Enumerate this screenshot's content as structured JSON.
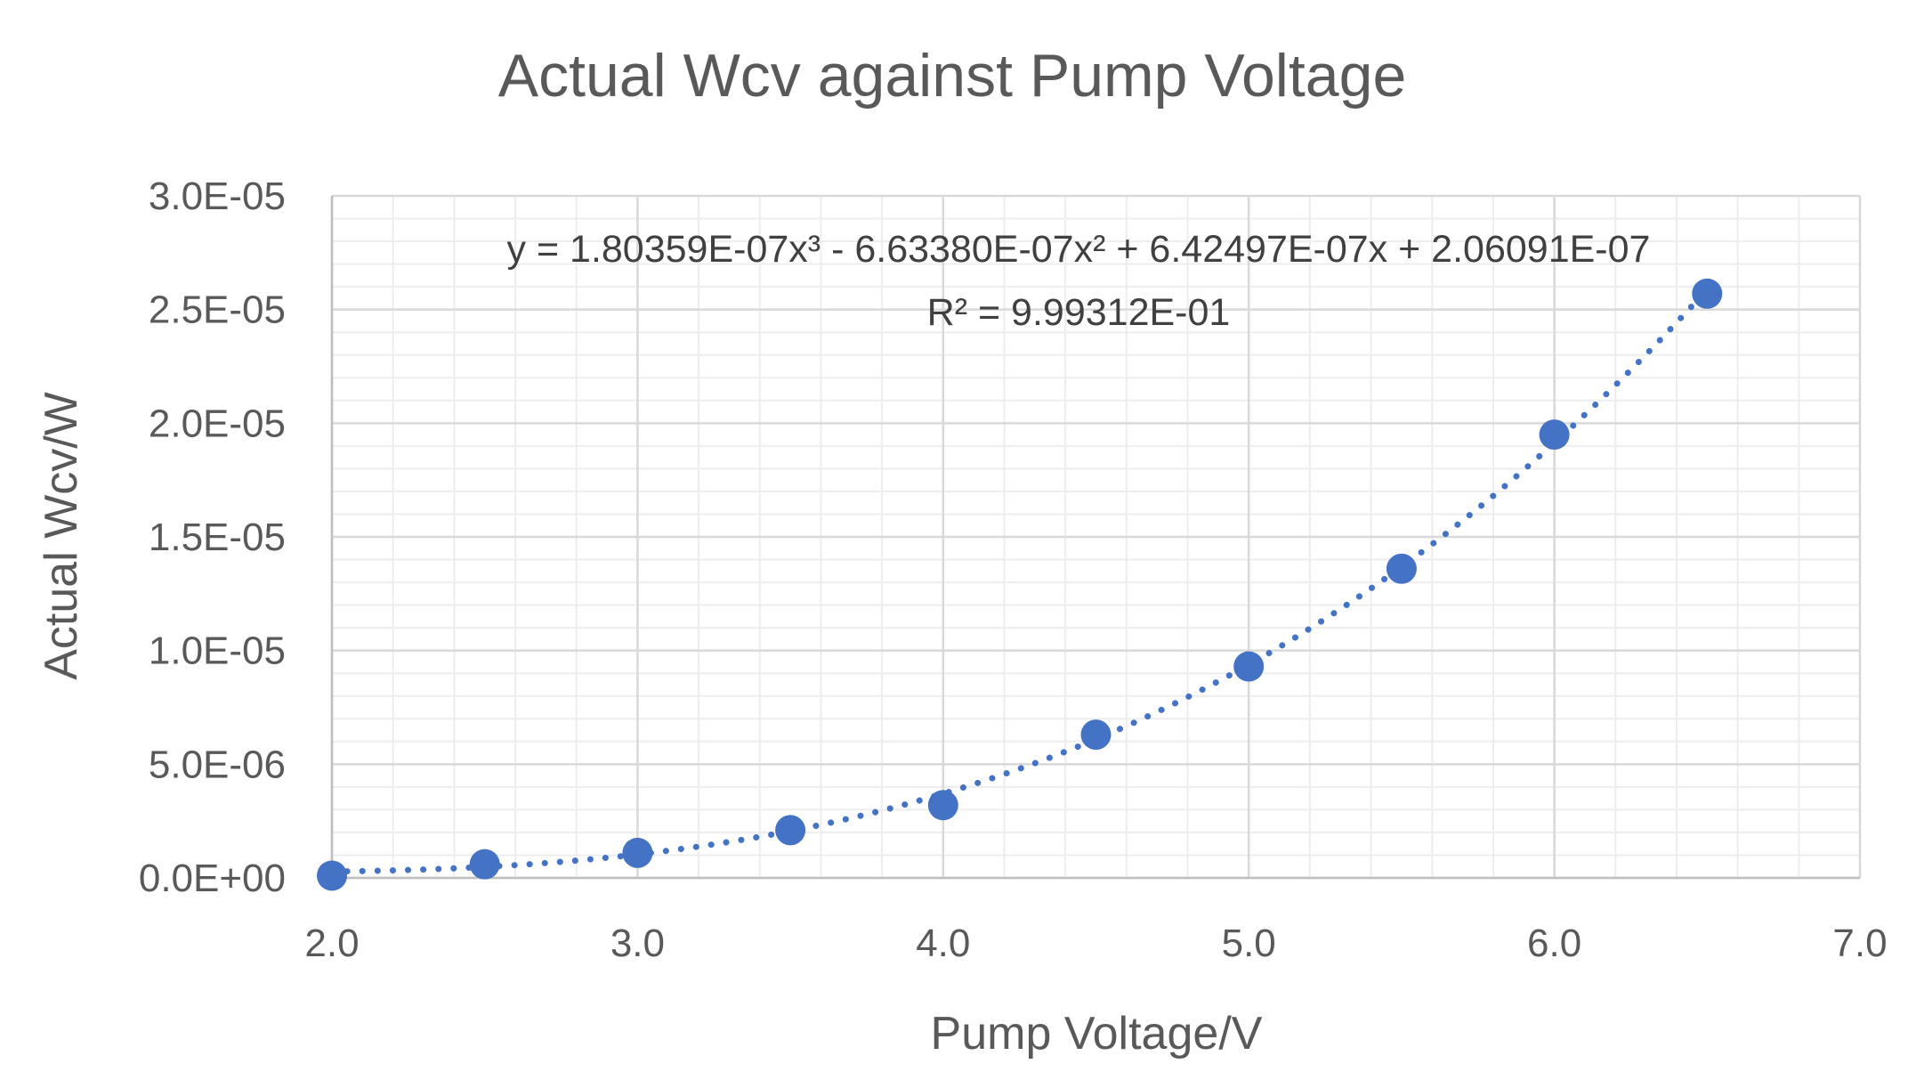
{
  "chart_data": {
    "type": "scatter",
    "title": "Actual Wcv against Pump Voltage",
    "xlabel": "Pump Voltage/V",
    "ylabel": "Actual Wcv/W",
    "xlim": [
      2.0,
      7.0
    ],
    "ylim": [
      0,
      3e-05
    ],
    "x_ticks": [
      2.0,
      3.0,
      4.0,
      5.0,
      6.0,
      7.0
    ],
    "x_tick_labels": [
      "2.0",
      "3.0",
      "4.0",
      "5.0",
      "6.0",
      "7.0"
    ],
    "y_ticks": [
      0,
      5e-06,
      1e-05,
      1.5e-05,
      2e-05,
      2.5e-05,
      3e-05
    ],
    "y_tick_labels": [
      "0.0E+00",
      "5.0E-06",
      "1.0E-05",
      "1.5E-05",
      "2.0E-05",
      "2.5E-05",
      "3.0E-05"
    ],
    "x_minor_step": 0.2,
    "y_minor_step": 1e-06,
    "grid": {
      "major": true,
      "minor": true
    },
    "legend": "none",
    "series": [
      {
        "x": [
          2.0,
          2.5,
          3.0,
          3.5,
          4.0,
          4.5,
          5.0,
          5.5,
          6.0,
          6.5
        ],
        "y": [
          1e-07,
          6e-07,
          1.1e-06,
          2.1e-06,
          3.2e-06,
          6.3e-06,
          9.3e-06,
          1.36e-05,
          1.95e-05,
          2.57e-05
        ],
        "color": "#4472C4"
      }
    ],
    "trendline": {
      "type": "polynomial",
      "order": 3,
      "coefficients": [
        1.80359e-07,
        -6.6338e-07,
        6.42497e-07,
        2.06091e-07
      ],
      "color": "#4472C4",
      "style": "dotted",
      "equation_label": "y = 1.80359E-07x³ - 6.63380E-07x² + 6.42497E-07x + 2.06091E-07",
      "r2_label": "R² = 9.99312E-01"
    },
    "colors": {
      "major_grid": "#D9D9D9",
      "minor_grid": "#EDEDED",
      "axis_line": "#BFBFBF",
      "text": "#595959"
    }
  }
}
